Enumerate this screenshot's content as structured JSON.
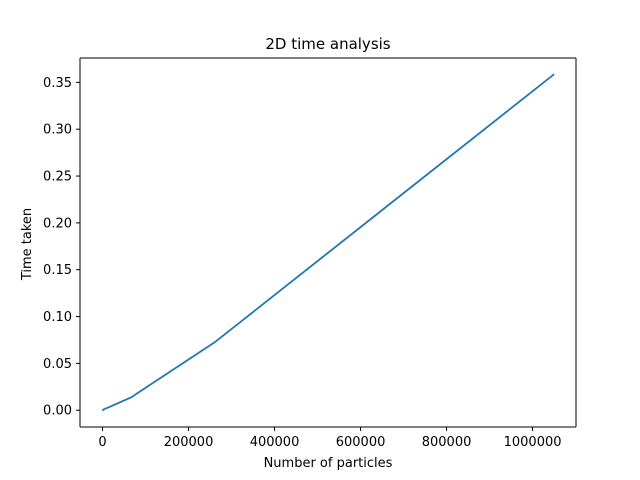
{
  "chart_data": {
    "type": "line",
    "title": "2D time analysis",
    "xlabel": "Number of particles",
    "ylabel": "Time taken",
    "xlim": [
      -52428.8,
      1101004.8
    ],
    "ylim": [
      -0.017905,
      0.376005
    ],
    "xticks": [
      0,
      200000,
      400000,
      600000,
      800000,
      1000000
    ],
    "xtick_labels": [
      "0",
      "200000",
      "400000",
      "600000",
      "800000",
      "1000000"
    ],
    "yticks": [
      0.0,
      0.05,
      0.1,
      0.15,
      0.2,
      0.25,
      0.3,
      0.35
    ],
    "ytick_labels": [
      "0.00",
      "0.05",
      "0.10",
      "0.15",
      "0.20",
      "0.25",
      "0.30",
      "0.35"
    ],
    "grid": false,
    "legend": "none",
    "series": [
      {
        "color": "#1f77b4",
        "x": [
          1024,
          4096,
          16384,
          65536,
          262144,
          1048576
        ],
        "y": [
          0.0003,
          0.0012,
          0.0035,
          0.0135,
          0.073,
          0.3581
        ]
      }
    ]
  }
}
